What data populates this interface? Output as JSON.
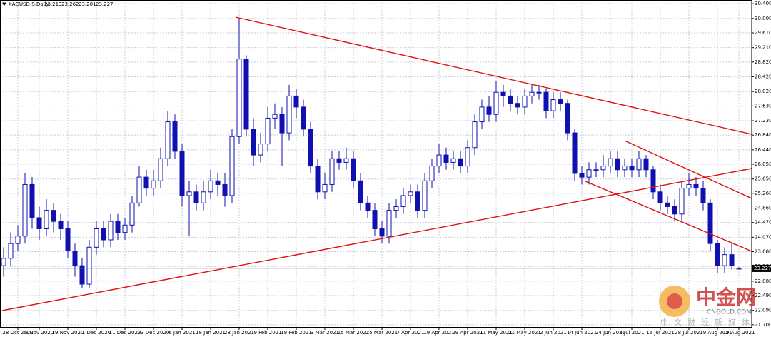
{
  "chart_data": {
    "type": "candlestick",
    "title": "XAGUSD-S,Daily",
    "categories": [
      null,
      null,
      "28 Oct 2020",
      null,
      null,
      "9 Nov 2020",
      null,
      null,
      null,
      "19 Nov 2020",
      null,
      null,
      null,
      "1 Dec 2020",
      null,
      null,
      null,
      "11 Dec 2020",
      null,
      null,
      null,
      "23 Dec 2020",
      null,
      null,
      null,
      "6 Jan 2021",
      null,
      null,
      null,
      "18 Jan 2021",
      null,
      null,
      null,
      "28 Jan 2021",
      null,
      null,
      null,
      "9 Feb 2021",
      null,
      null,
      null,
      "19 Feb 2021",
      null,
      null,
      null,
      "3 Mar 2021",
      null,
      null,
      null,
      "15 Mar 2021",
      null,
      null,
      null,
      "25 Mar 2021",
      null,
      null,
      null,
      "7 Apr 2021",
      null,
      null,
      null,
      "19 Apr 2021",
      null,
      null,
      null,
      "29 Apr 2021",
      null,
      null,
      null,
      "11 May 2021",
      null,
      null,
      null,
      "21 May 2021",
      null,
      null,
      null,
      "2 Jun 2021",
      null,
      null,
      null,
      "14 Jun 2021",
      null,
      null,
      null,
      "24 Jun 2021",
      null,
      null,
      "6 Jul 2021",
      null,
      null,
      null,
      "16 Jul 2021",
      null,
      null,
      null,
      "28 Jul 2021",
      null,
      null,
      null,
      "9 Aug 2021",
      null,
      null,
      "19 Aug 2021"
    ],
    "open": [
      23.3,
      23.5,
      23.9,
      24.1,
      25.5,
      24.6,
      24.3,
      24.8,
      24.5,
      24.3,
      23.7,
      23.3,
      22.8,
      23.8,
      24.3,
      24.0,
      24.5,
      24.2,
      24.4,
      25.0,
      25.7,
      25.4,
      25.6,
      26.2,
      27.2,
      26.4,
      25.2,
      25.3,
      25.0,
      25.3,
      25.6,
      25.5,
      25.2,
      26.8,
      28.9,
      27.0,
      26.3,
      26.6,
      27.3,
      27.4,
      26.9,
      27.9,
      27.6,
      27.0,
      26.0,
      25.3,
      25.5,
      26.2,
      26.1,
      26.2,
      25.6,
      25.0,
      24.8,
      24.3,
      24.1,
      24.8,
      24.9,
      25.2,
      25.3,
      24.8,
      25.6,
      26.0,
      26.3,
      26.1,
      26.2,
      26.0,
      26.5,
      27.2,
      27.6,
      27.4,
      28.0,
      27.9,
      27.7,
      27.6,
      27.9,
      28.0,
      28.0,
      27.5,
      27.8,
      27.7,
      26.9,
      25.8,
      25.7,
      25.9,
      25.9,
      26.0,
      26.2,
      25.9,
      26.0,
      25.9,
      26.2,
      25.9,
      25.3,
      25.0,
      24.9,
      24.7,
      25.4,
      25.5,
      25.4,
      25.0,
      23.9,
      23.3,
      23.6,
      23.213
    ],
    "high": [
      23.8,
      24.2,
      24.4,
      25.8,
      25.7,
      24.9,
      25.1,
      25.0,
      24.7,
      24.5,
      23.9,
      23.5,
      24.0,
      24.5,
      24.5,
      24.7,
      24.7,
      24.6,
      25.2,
      26.0,
      25.9,
      25.9,
      26.5,
      27.5,
      27.4,
      26.6,
      25.6,
      25.5,
      25.6,
      25.9,
      25.8,
      25.8,
      27.0,
      30.0,
      29.0,
      27.3,
      26.9,
      27.6,
      27.7,
      27.6,
      28.2,
      28.1,
      27.8,
      27.2,
      26.2,
      25.8,
      26.4,
      26.4,
      26.5,
      26.4,
      25.8,
      25.2,
      25.0,
      24.5,
      25.0,
      25.1,
      25.4,
      25.5,
      25.5,
      25.8,
      26.2,
      26.6,
      26.5,
      26.4,
      26.4,
      26.7,
      27.4,
      27.8,
      27.9,
      28.3,
      28.2,
      28.1,
      27.9,
      28.1,
      28.2,
      28.2,
      28.1,
      28.0,
      28.0,
      27.8,
      27.0,
      26.0,
      26.1,
      26.1,
      26.3,
      26.4,
      26.4,
      26.2,
      26.2,
      26.4,
      26.3,
      26.0,
      25.5,
      25.2,
      25.1,
      25.6,
      25.8,
      25.7,
      25.6,
      25.1,
      24.0,
      23.8,
      23.9,
      23.262
    ],
    "low": [
      23.0,
      23.3,
      23.7,
      23.9,
      24.3,
      24.0,
      24.1,
      24.2,
      24.0,
      23.5,
      23.0,
      22.7,
      22.7,
      23.6,
      23.8,
      23.8,
      24.0,
      24.0,
      24.2,
      24.9,
      25.2,
      25.2,
      25.4,
      26.0,
      26.2,
      24.9,
      24.1,
      24.8,
      24.8,
      25.1,
      25.2,
      24.9,
      25.0,
      26.6,
      26.8,
      26.0,
      26.1,
      26.4,
      27.0,
      26.0,
      26.7,
      27.3,
      26.8,
      25.8,
      25.1,
      25.1,
      25.3,
      25.9,
      25.9,
      25.4,
      24.8,
      24.6,
      24.1,
      23.9,
      23.9,
      24.6,
      24.7,
      25.0,
      24.6,
      24.6,
      25.4,
      25.8,
      25.9,
      25.9,
      25.8,
      25.8,
      26.3,
      27.0,
      27.2,
      27.2,
      27.6,
      27.5,
      27.4,
      27.4,
      27.7,
      27.8,
      27.3,
      27.3,
      27.5,
      26.7,
      25.6,
      25.5,
      25.5,
      25.7,
      25.7,
      25.8,
      25.7,
      25.7,
      25.7,
      25.7,
      25.7,
      25.1,
      24.8,
      24.7,
      24.5,
      24.5,
      25.2,
      25.2,
      24.8,
      23.7,
      23.1,
      23.1,
      23.2,
      23.201
    ],
    "close": [
      23.5,
      23.9,
      24.1,
      25.5,
      24.6,
      24.3,
      24.8,
      24.5,
      24.3,
      23.7,
      23.3,
      22.8,
      23.8,
      24.3,
      24.0,
      24.5,
      24.2,
      24.4,
      25.0,
      25.7,
      25.4,
      25.6,
      26.2,
      27.2,
      26.4,
      25.2,
      25.3,
      25.0,
      25.3,
      25.6,
      25.5,
      25.2,
      26.8,
      28.9,
      27.0,
      26.3,
      26.6,
      27.3,
      27.4,
      26.9,
      27.9,
      27.6,
      27.0,
      26.0,
      25.3,
      25.5,
      26.2,
      26.1,
      26.2,
      25.6,
      25.0,
      24.8,
      24.3,
      24.1,
      24.8,
      24.9,
      25.2,
      25.3,
      24.8,
      25.6,
      26.0,
      26.3,
      26.1,
      26.2,
      26.0,
      26.5,
      27.2,
      27.6,
      27.4,
      28.0,
      27.9,
      27.7,
      27.6,
      27.9,
      28.0,
      28.0,
      27.5,
      27.8,
      27.7,
      26.9,
      25.8,
      25.7,
      25.9,
      25.9,
      26.0,
      26.2,
      25.9,
      26.0,
      25.9,
      26.2,
      25.9,
      25.3,
      25.0,
      24.9,
      24.7,
      25.4,
      25.5,
      25.4,
      25.0,
      23.9,
      23.3,
      23.6,
      23.3,
      23.227
    ],
    "ylim": [
      21.62,
      30.5
    ],
    "yticks": [
      {
        "value": 30.4,
        "label": "30.400"
      },
      {
        "value": 30.0,
        "label": "30.000"
      },
      {
        "value": 29.61,
        "label": "29.610"
      },
      {
        "value": 29.21,
        "label": "29.210"
      },
      {
        "value": 28.82,
        "label": "28.820"
      },
      {
        "value": 28.42,
        "label": "28.420"
      },
      {
        "value": 28.02,
        "label": "28.020"
      },
      {
        "value": 27.63,
        "label": "27.630"
      },
      {
        "value": 27.23,
        "label": "27.230"
      },
      {
        "value": 26.84,
        "label": "26.840"
      },
      {
        "value": 26.44,
        "label": "26.440"
      },
      {
        "value": 26.05,
        "label": "26.050"
      },
      {
        "value": 25.65,
        "label": "25.650"
      },
      {
        "value": 25.26,
        "label": "25.260"
      },
      {
        "value": 24.86,
        "label": "24.860"
      },
      {
        "value": 24.47,
        "label": "24.470"
      },
      {
        "value": 24.07,
        "label": "24.070"
      },
      {
        "value": 23.68,
        "label": "23.680"
      },
      {
        "value": 23.28,
        "label": "23.280"
      },
      {
        "value": 22.88,
        "label": "22.880"
      },
      {
        "value": 22.49,
        "label": "22.490"
      },
      {
        "value": 22.09,
        "label": "22.090"
      },
      {
        "value": 21.7,
        "label": "21.700"
      }
    ],
    "grid": true,
    "up_color": "#ffffff",
    "down_color": "#1010b0",
    "wick_color": "#1010b0",
    "watermark": {
      "brand": "中金网",
      "site": "CNGOLD.COM",
      "slogan": "中文财经新媒体"
    }
  }
}
